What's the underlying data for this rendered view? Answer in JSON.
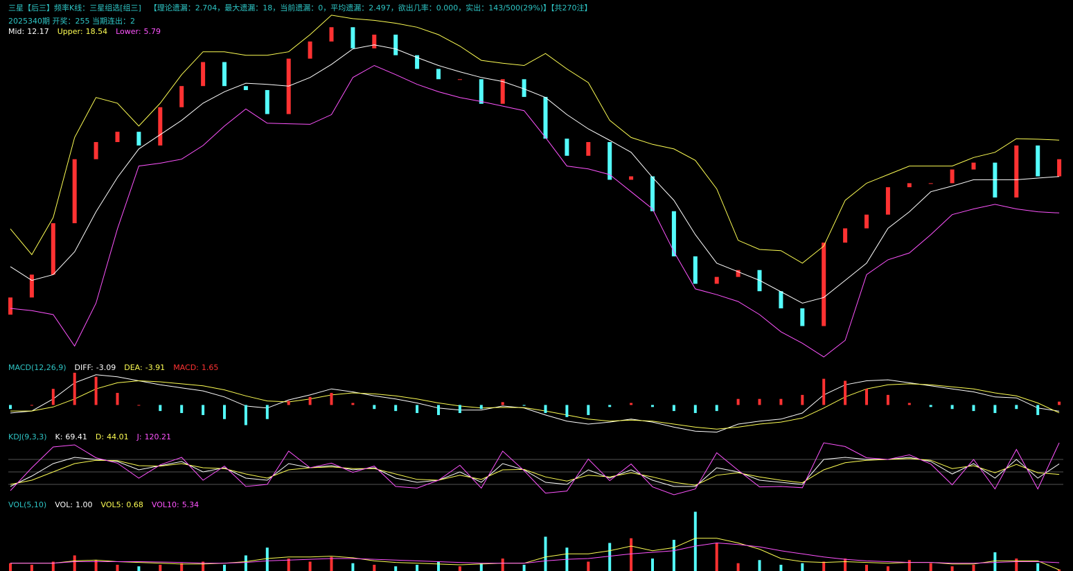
{
  "chart_data": [
    {
      "type": "candlestick",
      "title": "三星【后三】频率K线：三星组选[组三]",
      "subtitle": "【理论遗漏：2.704，最大遗漏：18，当前遗漏：0，平均遗漏：2.497，欲出几率：0.000，实出：143/500(29%)】【共270注】",
      "annotation": "2025340期 开奖：255 当期连出：2",
      "up_color": "#ff3232",
      "down_color": "#54fcfc",
      "open": [
        -12,
        -9,
        -5,
        4,
        15.2,
        18.2,
        20,
        17.6,
        24.3,
        28,
        32.2,
        28,
        27.3,
        23.1,
        32.8,
        35.8,
        38.3,
        34.6,
        37,
        33.4,
        31,
        29.2,
        29.2,
        24.9,
        29.2,
        26.1,
        18.8,
        15.8,
        18.2,
        11.6,
        12.2,
        6.1,
        -1.8,
        -6.6,
        -5.4,
        -4.2,
        -7.9,
        -10.9,
        -14,
        0.6,
        3.1,
        5.5,
        10.3,
        11,
        11,
        13.4,
        14.6,
        8.5,
        17.6,
        12.2
      ],
      "close": [
        -9,
        -5,
        4,
        15.2,
        18.2,
        20,
        17.6,
        24.3,
        28,
        32.2,
        28,
        27.3,
        23.1,
        32.8,
        35.8,
        38.3,
        34.6,
        37,
        33.4,
        31,
        29.2,
        29.2,
        24.9,
        29.2,
        26.1,
        18.8,
        15.8,
        18.2,
        11.6,
        12.2,
        6.1,
        -1.8,
        -6.6,
        -5.4,
        -4.2,
        -7.9,
        -10.9,
        -14,
        0.6,
        3.1,
        5.5,
        10.3,
        11,
        11,
        13.4,
        14.6,
        8.5,
        17.6,
        12.2,
        15.2
      ],
      "series": [
        {
          "name": "Mid:",
          "color": "#ffffff",
          "values": [
            -3.6,
            -6,
            -5,
            -1,
            6,
            12,
            17,
            19.5,
            22,
            25,
            27,
            28.5,
            28.3,
            28,
            29.5,
            31.8,
            34.5,
            35.2,
            34.5,
            33,
            31.6,
            30.5,
            29.5,
            28.8,
            27.5,
            26,
            23,
            20.5,
            18.5,
            16.4,
            12,
            8,
            2,
            -3,
            -4.5,
            -6,
            -8,
            -10,
            -9,
            -6,
            -3,
            3.1,
            6,
            9.5,
            10.5,
            11.6,
            11.6,
            11.6,
            11.9,
            12.17
          ]
        },
        {
          "name": "Upper:",
          "color": "#ffff54",
          "values": [
            3,
            -1.5,
            5,
            19,
            26,
            25,
            21,
            25,
            30,
            34,
            34,
            33.4,
            33.4,
            34,
            37,
            40.4,
            39.8,
            39.5,
            39,
            38.3,
            37,
            35,
            32.5,
            32,
            31.6,
            33.7,
            31,
            28.6,
            22,
            19,
            17.8,
            17,
            15,
            10,
            1,
            -0.6,
            -0.8,
            -3,
            0,
            8,
            11,
            12.5,
            14,
            14,
            14,
            15.5,
            16.4,
            18.8,
            18.7,
            18.54
          ]
        },
        {
          "name": "Lower:",
          "color": "#ff54ff",
          "values": [
            -10.9,
            -11.3,
            -12,
            -17.5,
            -10,
            3,
            14,
            14.5,
            15.2,
            17.6,
            21,
            24,
            21.5,
            21.4,
            21.3,
            23,
            29.5,
            31.6,
            30,
            28.3,
            27,
            26,
            25.3,
            24.5,
            23.7,
            19,
            14,
            13.5,
            12.5,
            9.5,
            6.5,
            -1,
            -7.5,
            -8.5,
            -9.7,
            -12,
            -15,
            -17,
            -19.4,
            -16.5,
            -5,
            -2.4,
            -1.2,
            2,
            5.5,
            6.5,
            7.3,
            6.5,
            6,
            5.79
          ]
        }
      ],
      "ylim": [
        -20,
        41
      ]
    },
    {
      "type": "macd",
      "title": "MACD(12,26,9)",
      "series": [
        {
          "name": "DIFF:",
          "color": "#ffffff",
          "values": [
            -4,
            -3,
            3,
            11,
            15,
            14,
            12,
            10,
            8.5,
            7,
            4,
            -0.5,
            -1.5,
            2.5,
            5,
            8,
            6.5,
            4.5,
            3,
            1,
            -1.5,
            -2.5,
            -2.5,
            -0.5,
            -1.5,
            -5,
            -8,
            -9.5,
            -8.5,
            -7,
            -8.5,
            -11,
            -13,
            -13.5,
            -9.5,
            -8,
            -7,
            -4,
            5,
            10,
            12,
            12.5,
            11,
            9.5,
            8,
            6.5,
            4,
            3.5,
            -1.5,
            -3.09
          ]
        },
        {
          "name": "DEA:",
          "color": "#ffff54",
          "values": [
            -3,
            -3,
            -1,
            3,
            8,
            11,
            12,
            11.5,
            10.5,
            9.5,
            7.5,
            4.5,
            2,
            1.5,
            3,
            5,
            6,
            5.5,
            4.5,
            3,
            1,
            -0.5,
            -1.5,
            -1.2,
            -1.3,
            -3,
            -5,
            -7,
            -8,
            -7.5,
            -8,
            -9.5,
            -11,
            -12,
            -11,
            -9.5,
            -8.5,
            -6.5,
            -1.5,
            4,
            8,
            10,
            10.5,
            10,
            9,
            8,
            6,
            4.5,
            1,
            -3.91
          ]
        },
        {
          "name": "MACD:",
          "type": "bar",
          "color": "#ff3232",
          "down_color": "#54fcfc",
          "values": [
            -2,
            0,
            8,
            16,
            14,
            6,
            0,
            -3,
            -4,
            -5,
            -7,
            -10,
            -7,
            2,
            4,
            6,
            1,
            -2,
            -3,
            -4,
            -5,
            -4,
            -2,
            1.4,
            -0.4,
            -4,
            -6,
            -5,
            -1,
            1,
            -1,
            -3,
            -4,
            -3,
            3,
            3,
            3,
            5,
            13,
            12,
            8,
            5,
            1,
            -1,
            -2,
            -3,
            -4,
            -2,
            -5,
            1.65
          ]
        }
      ],
      "ylim": [
        -15,
        17
      ]
    },
    {
      "type": "line",
      "title": "KDJ(9,3,3)",
      "series": [
        {
          "name": "K:",
          "color": "#ffffff",
          "values": [
            15,
            40,
            70,
            85,
            80,
            75,
            55,
            65,
            75,
            50,
            60,
            35,
            30,
            70,
            60,
            65,
            55,
            60,
            35,
            25,
            30,
            50,
            25,
            70,
            55,
            25,
            20,
            55,
            35,
            55,
            30,
            15,
            15,
            60,
            50,
            30,
            25,
            20,
            80,
            85,
            80,
            80,
            85,
            75,
            45,
            70,
            35,
            80,
            35,
            69.41
          ]
        },
        {
          "name": "D:",
          "color": "#ffff54",
          "values": [
            20,
            30,
            50,
            70,
            78,
            77,
            65,
            64,
            70,
            60,
            58,
            45,
            35,
            55,
            60,
            62,
            58,
            58,
            45,
            32,
            30,
            42,
            32,
            55,
            56,
            38,
            28,
            42,
            38,
            48,
            38,
            25,
            18,
            42,
            48,
            38,
            30,
            24,
            55,
            72,
            78,
            80,
            82,
            78,
            58,
            65,
            48,
            68,
            48,
            44.01
          ]
        },
        {
          "name": "J:",
          "color": "#ff54ff",
          "values": [
            5,
            60,
            110,
            115,
            84,
            71,
            35,
            67,
            85,
            30,
            64,
            15,
            20,
            100,
            60,
            71,
            49,
            64,
            15,
            11,
            30,
            66,
            11,
            100,
            53,
            -1,
            4,
            81,
            29,
            69,
            14,
            -5,
            9,
            96,
            54,
            14,
            15,
            12,
            120,
            111,
            84,
            80,
            91,
            69,
            19,
            80,
            9,
            104,
            9,
            120.21
          ]
        }
      ],
      "ylim": [
        -25,
        125
      ],
      "yticks": [
        20,
        50,
        80
      ],
      "grid": true
    },
    {
      "type": "bar",
      "title": "VOL(5,10)",
      "series": [
        {
          "name": "VOL:",
          "type": "bar",
          "color": "#ffffff",
          "values": [
            5,
            4,
            6,
            10,
            7,
            4,
            3,
            4,
            5,
            6,
            4,
            10,
            15,
            8,
            6,
            9,
            5,
            4,
            3,
            4,
            6,
            3,
            5,
            8,
            4,
            22,
            15,
            6,
            18,
            21,
            8,
            20,
            38,
            18,
            5,
            7,
            4,
            5,
            6,
            8,
            4,
            3,
            7,
            5,
            3,
            4,
            12,
            8,
            5,
            1
          ],
          "value_labels": [
            null,
            null,
            null,
            null,
            null,
            null,
            null,
            null,
            null,
            null,
            null,
            null,
            null,
            null,
            null,
            null,
            null,
            null,
            null,
            null,
            null,
            null,
            null,
            null,
            null,
            null,
            null,
            null,
            null,
            null,
            null,
            null,
            null,
            null,
            null,
            null,
            null,
            null,
            null,
            null,
            null,
            null,
            null,
            null,
            null,
            null,
            null,
            null,
            null,
            "1.00"
          ]
        },
        {
          "name": "VOL5:",
          "color": "#ffff54",
          "values": [
            5,
            5,
            5,
            6.5,
            7,
            6,
            5.5,
            5,
            4.5,
            4.5,
            5,
            6,
            8,
            9,
            9,
            9.5,
            8.5,
            6.5,
            5.5,
            5,
            4.5,
            4,
            4.5,
            5,
            5,
            9,
            11,
            11,
            13,
            16,
            13,
            15,
            21,
            21,
            18,
            14,
            8,
            6,
            5.5,
            6,
            5.5,
            5,
            5.5,
            5.5,
            4.5,
            4.5,
            6.5,
            6.5,
            6.5,
            0.68
          ]
        },
        {
          "name": "VOL10:",
          "color": "#ff54ff",
          "values": [
            5,
            5,
            5,
            6,
            6,
            6,
            6,
            5.8,
            5.5,
            5,
            5,
            5.5,
            6.5,
            7,
            7.5,
            8,
            8,
            7.5,
            7,
            6.5,
            6,
            5.5,
            5,
            5,
            5,
            6.5,
            7.5,
            8,
            9.5,
            11,
            12,
            13,
            16,
            18,
            17,
            15.5,
            13,
            11,
            9,
            7.5,
            6.5,
            6,
            5.5,
            5.5,
            5,
            5,
            5.5,
            6,
            6,
            5.34
          ]
        }
      ],
      "ylim": [
        0,
        40
      ]
    }
  ]
}
